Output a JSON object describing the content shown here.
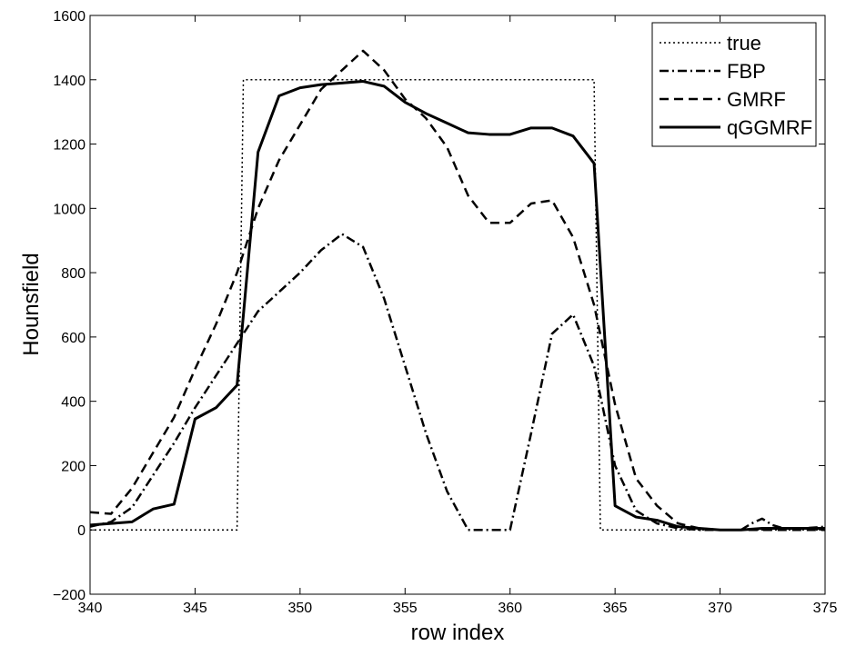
{
  "chart_data": {
    "type": "line",
    "title": "",
    "xlabel": "row index",
    "ylabel": "Hounsfield",
    "xlim": [
      340,
      375
    ],
    "ylim": [
      -200,
      1600
    ],
    "xticks": [
      340,
      345,
      350,
      355,
      360,
      365,
      370,
      375
    ],
    "yticks": [
      -200,
      0,
      200,
      400,
      600,
      800,
      1000,
      1200,
      1400,
      1600
    ],
    "grid": false,
    "legend_position": "top-right",
    "series": [
      {
        "name": "true",
        "style": "dotted",
        "color": "#000000",
        "points": [
          [
            340,
            0
          ],
          [
            347,
            0
          ],
          [
            347.3,
            1400
          ],
          [
            364,
            1400
          ],
          [
            364.3,
            0
          ],
          [
            375,
            0
          ]
        ]
      },
      {
        "name": "FBP",
        "style": "dashdot",
        "color": "#000000",
        "points": [
          [
            340,
            10
          ],
          [
            341,
            25
          ],
          [
            342,
            70
          ],
          [
            343,
            170
          ],
          [
            344,
            270
          ],
          [
            345,
            380
          ],
          [
            346,
            480
          ],
          [
            347,
            580
          ],
          [
            348,
            680
          ],
          [
            349,
            740
          ],
          [
            350,
            800
          ],
          [
            351,
            870
          ],
          [
            352,
            920
          ],
          [
            353,
            880
          ],
          [
            354,
            720
          ],
          [
            355,
            510
          ],
          [
            356,
            300
          ],
          [
            357,
            120
          ],
          [
            358,
            0
          ],
          [
            359,
            0
          ],
          [
            360,
            0
          ],
          [
            361,
            300
          ],
          [
            362,
            610
          ],
          [
            363,
            670
          ],
          [
            364,
            510
          ],
          [
            365,
            200
          ],
          [
            366,
            60
          ],
          [
            367,
            20
          ],
          [
            368,
            5
          ],
          [
            369,
            0
          ],
          [
            370,
            0
          ],
          [
            371,
            0
          ],
          [
            371.5,
            20
          ],
          [
            372,
            35
          ],
          [
            372.5,
            15
          ],
          [
            373,
            5
          ],
          [
            374,
            5
          ],
          [
            375,
            10
          ]
        ]
      },
      {
        "name": "GMRF",
        "style": "dashed",
        "color": "#000000",
        "points": [
          [
            340,
            55
          ],
          [
            341,
            50
          ],
          [
            342,
            130
          ],
          [
            343,
            240
          ],
          [
            344,
            350
          ],
          [
            345,
            500
          ],
          [
            346,
            640
          ],
          [
            347,
            800
          ],
          [
            348,
            1000
          ],
          [
            349,
            1150
          ],
          [
            350,
            1260
          ],
          [
            351,
            1370
          ],
          [
            352,
            1430
          ],
          [
            353,
            1490
          ],
          [
            354,
            1430
          ],
          [
            355,
            1340
          ],
          [
            356,
            1280
          ],
          [
            357,
            1190
          ],
          [
            358,
            1040
          ],
          [
            359,
            955
          ],
          [
            360,
            955
          ],
          [
            361,
            1015
          ],
          [
            362,
            1025
          ],
          [
            363,
            910
          ],
          [
            364,
            700
          ],
          [
            365,
            390
          ],
          [
            366,
            160
          ],
          [
            367,
            75
          ],
          [
            368,
            20
          ],
          [
            369,
            5
          ],
          [
            370,
            0
          ],
          [
            371,
            0
          ],
          [
            372,
            0
          ],
          [
            373,
            0
          ],
          [
            374,
            0
          ],
          [
            375,
            0
          ]
        ]
      },
      {
        "name": "qGGMRF",
        "style": "solid",
        "color": "#000000",
        "points": [
          [
            340,
            15
          ],
          [
            341,
            20
          ],
          [
            342,
            25
          ],
          [
            343,
            65
          ],
          [
            344,
            80
          ],
          [
            345,
            345
          ],
          [
            346,
            380
          ],
          [
            347,
            450
          ],
          [
            348,
            1175
          ],
          [
            349,
            1350
          ],
          [
            350,
            1375
          ],
          [
            351,
            1385
          ],
          [
            352,
            1390
          ],
          [
            353,
            1395
          ],
          [
            354,
            1380
          ],
          [
            355,
            1330
          ],
          [
            356,
            1295
          ],
          [
            357,
            1265
          ],
          [
            358,
            1235
          ],
          [
            359,
            1230
          ],
          [
            360,
            1230
          ],
          [
            361,
            1250
          ],
          [
            362,
            1250
          ],
          [
            363,
            1225
          ],
          [
            364,
            1140
          ],
          [
            365,
            75
          ],
          [
            366,
            40
          ],
          [
            367,
            30
          ],
          [
            368,
            10
          ],
          [
            369,
            5
          ],
          [
            370,
            0
          ],
          [
            371,
            0
          ],
          [
            372,
            5
          ],
          [
            373,
            5
          ],
          [
            374,
            5
          ],
          [
            375,
            5
          ]
        ]
      }
    ]
  }
}
